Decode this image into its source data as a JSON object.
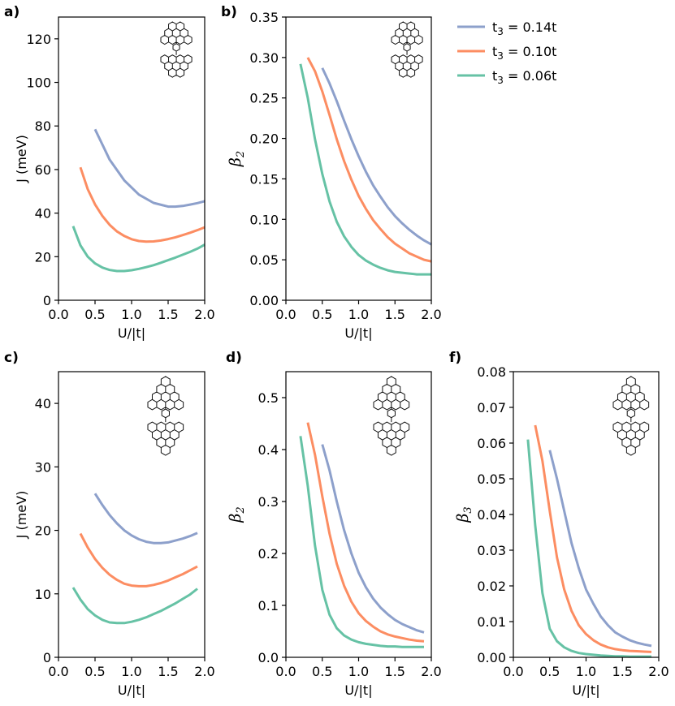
{
  "colors": {
    "t3_014": "#8DA0CB",
    "t3_010": "#FC8D62",
    "t3_006": "#66C2A5"
  },
  "legend": {
    "entries": [
      {
        "base": "t",
        "sub": "3",
        "rest": " = 0.14t",
        "color_key": "t3_014"
      },
      {
        "base": "t",
        "sub": "3",
        "rest": " = 0.10t",
        "color_key": "t3_010"
      },
      {
        "base": "t",
        "sub": "3",
        "rest": " = 0.06t",
        "color_key": "t3_006"
      }
    ]
  },
  "chart_data": [
    {
      "panel": "a)",
      "type": "line",
      "icon": "small-molecule",
      "xlabel": "U/|t|",
      "ylabel": "J (meV)",
      "ylabel_style": "plain",
      "xlim": [
        0.0,
        2.0
      ],
      "ylim": [
        0,
        130
      ],
      "xticks": [
        0.0,
        0.5,
        1.0,
        1.5,
        2.0
      ],
      "xtick_labels": [
        "0.0",
        "0.5",
        "1.0",
        "1.5",
        "2.0"
      ],
      "yticks": [
        0,
        20,
        40,
        60,
        80,
        100,
        120
      ],
      "ytick_labels": [
        "0",
        "20",
        "40",
        "60",
        "80",
        "100",
        "120"
      ],
      "series": [
        {
          "color_key": "t3_014",
          "x": [
            0.5,
            0.7,
            0.9,
            1.1,
            1.3,
            1.5,
            1.6,
            1.7,
            1.8,
            1.9,
            2.0
          ],
          "y": [
            78.5,
            64.5,
            55.0,
            48.5,
            44.7,
            43.0,
            43.0,
            43.3,
            43.9,
            44.6,
            45.5
          ]
        },
        {
          "color_key": "t3_010",
          "x": [
            0.3,
            0.4,
            0.5,
            0.6,
            0.7,
            0.8,
            0.9,
            1.0,
            1.1,
            1.2,
            1.3,
            1.4,
            1.5,
            1.6,
            1.7,
            1.8,
            1.9,
            2.0
          ],
          "y": [
            61,
            51,
            44,
            38.7,
            34.6,
            31.6,
            29.5,
            28.0,
            27.2,
            26.9,
            27.0,
            27.4,
            28.1,
            28.9,
            29.9,
            31.0,
            32.2,
            33.5
          ]
        },
        {
          "color_key": "t3_006",
          "x": [
            0.2,
            0.3,
            0.4,
            0.5,
            0.6,
            0.7,
            0.8,
            0.9,
            1.0,
            1.1,
            1.2,
            1.3,
            1.4,
            1.5,
            1.6,
            1.7,
            1.8,
            1.9,
            2.0
          ],
          "y": [
            34,
            25.2,
            20.0,
            16.9,
            15.0,
            13.9,
            13.4,
            13.4,
            13.8,
            14.4,
            15.2,
            16.1,
            17.2,
            18.4,
            19.6,
            20.9,
            22.2,
            23.7,
            25.5
          ]
        }
      ]
    },
    {
      "panel": "b)",
      "type": "line",
      "icon": "small-molecule",
      "xlabel": "U/|t|",
      "ylabel": "β",
      "ylabel_sub": "2",
      "ylabel_style": "greek",
      "xlim": [
        0.0,
        2.0
      ],
      "ylim": [
        0,
        0.35
      ],
      "xticks": [
        0.0,
        0.5,
        1.0,
        1.5,
        2.0
      ],
      "xtick_labels": [
        "0.0",
        "0.5",
        "1.0",
        "1.5",
        "2.0"
      ],
      "yticks": [
        0,
        0.05,
        0.1,
        0.15,
        0.2,
        0.25,
        0.3,
        0.35
      ],
      "ytick_labels": [
        "0.00",
        "0.05",
        "0.10",
        "0.15",
        "0.20",
        "0.25",
        "0.30",
        "0.35"
      ],
      "series": [
        {
          "color_key": "t3_014",
          "x": [
            0.5,
            0.6,
            0.7,
            0.8,
            0.9,
            1.0,
            1.1,
            1.2,
            1.3,
            1.4,
            1.5,
            1.6,
            1.7,
            1.8,
            1.9,
            2.0
          ],
          "y": [
            0.287,
            0.268,
            0.246,
            0.222,
            0.199,
            0.178,
            0.159,
            0.142,
            0.128,
            0.115,
            0.104,
            0.095,
            0.087,
            0.08,
            0.074,
            0.069
          ]
        },
        {
          "color_key": "t3_010",
          "x": [
            0.3,
            0.4,
            0.5,
            0.6,
            0.7,
            0.8,
            0.9,
            1.0,
            1.1,
            1.2,
            1.3,
            1.4,
            1.5,
            1.6,
            1.7,
            1.8,
            1.9,
            2.0
          ],
          "y": [
            0.3,
            0.283,
            0.258,
            0.229,
            0.199,
            0.172,
            0.149,
            0.129,
            0.113,
            0.099,
            0.088,
            0.078,
            0.07,
            0.064,
            0.058,
            0.054,
            0.05,
            0.048
          ]
        },
        {
          "color_key": "t3_006",
          "x": [
            0.2,
            0.3,
            0.4,
            0.5,
            0.6,
            0.7,
            0.8,
            0.9,
            1.0,
            1.1,
            1.2,
            1.3,
            1.4,
            1.5,
            1.6,
            1.7,
            1.8,
            1.9,
            2.0
          ],
          "y": [
            0.292,
            0.25,
            0.199,
            0.156,
            0.122,
            0.097,
            0.079,
            0.066,
            0.056,
            0.049,
            0.044,
            0.04,
            0.037,
            0.035,
            0.034,
            0.033,
            0.032,
            0.032,
            0.032
          ]
        }
      ]
    },
    {
      "panel": "c)",
      "type": "line",
      "icon": "large-molecule",
      "xlabel": "U/|t|",
      "ylabel": "J (meV)",
      "ylabel_style": "plain",
      "xlim": [
        0.0,
        2.0
      ],
      "ylim": [
        0,
        45
      ],
      "xticks": [
        0.0,
        0.5,
        1.0,
        1.5,
        2.0
      ],
      "xtick_labels": [
        "0.0",
        "0.5",
        "1.0",
        "1.5",
        "2.0"
      ],
      "yticks": [
        0,
        10,
        20,
        30,
        40
      ],
      "ytick_labels": [
        "0",
        "10",
        "20",
        "30",
        "40"
      ],
      "series": [
        {
          "color_key": "t3_014",
          "x": [
            0.5,
            0.6,
            0.7,
            0.8,
            0.9,
            1.0,
            1.1,
            1.2,
            1.3,
            1.4,
            1.5,
            1.6,
            1.7,
            1.8,
            1.9
          ],
          "y": [
            25.8,
            24.0,
            22.4,
            21.1,
            20.0,
            19.2,
            18.6,
            18.2,
            18.0,
            18.0,
            18.1,
            18.4,
            18.7,
            19.1,
            19.6
          ]
        },
        {
          "color_key": "t3_010",
          "x": [
            0.3,
            0.4,
            0.5,
            0.6,
            0.7,
            0.8,
            0.9,
            1.0,
            1.1,
            1.2,
            1.3,
            1.4,
            1.5,
            1.6,
            1.7,
            1.8,
            1.9
          ],
          "y": [
            19.5,
            17.3,
            15.5,
            14.1,
            13.0,
            12.2,
            11.6,
            11.3,
            11.2,
            11.2,
            11.4,
            11.7,
            12.1,
            12.6,
            13.1,
            13.7,
            14.3
          ]
        },
        {
          "color_key": "t3_006",
          "x": [
            0.2,
            0.3,
            0.4,
            0.5,
            0.6,
            0.7,
            0.8,
            0.9,
            1.0,
            1.1,
            1.2,
            1.3,
            1.4,
            1.5,
            1.6,
            1.7,
            1.8,
            1.9
          ],
          "y": [
            11.0,
            9.1,
            7.6,
            6.6,
            5.9,
            5.5,
            5.4,
            5.4,
            5.6,
            5.9,
            6.3,
            6.8,
            7.3,
            7.9,
            8.5,
            9.2,
            9.9,
            10.8
          ]
        }
      ]
    },
    {
      "panel": "d)",
      "type": "line",
      "icon": "large-molecule",
      "xlabel": "U/|t|",
      "ylabel": "β",
      "ylabel_sub": "2",
      "ylabel_style": "greek",
      "xlim": [
        0.0,
        2.0
      ],
      "ylim": [
        0,
        0.55
      ],
      "xticks": [
        0.0,
        0.5,
        1.0,
        1.5,
        2.0
      ],
      "xtick_labels": [
        "0.0",
        "0.5",
        "1.0",
        "1.5",
        "2.0"
      ],
      "yticks": [
        0,
        0.1,
        0.2,
        0.3,
        0.4,
        0.5
      ],
      "ytick_labels": [
        "0.0",
        "0.1",
        "0.2",
        "0.3",
        "0.4",
        "0.5"
      ],
      "series": [
        {
          "color_key": "t3_014",
          "x": [
            0.5,
            0.6,
            0.7,
            0.8,
            0.9,
            1.0,
            1.1,
            1.2,
            1.3,
            1.4,
            1.5,
            1.6,
            1.7,
            1.8,
            1.9
          ],
          "y": [
            0.41,
            0.36,
            0.3,
            0.245,
            0.2,
            0.163,
            0.135,
            0.113,
            0.096,
            0.083,
            0.072,
            0.064,
            0.058,
            0.052,
            0.048
          ]
        },
        {
          "color_key": "t3_010",
          "x": [
            0.3,
            0.4,
            0.5,
            0.6,
            0.7,
            0.8,
            0.9,
            1.0,
            1.1,
            1.2,
            1.3,
            1.4,
            1.5,
            1.6,
            1.7,
            1.8,
            1.9
          ],
          "y": [
            0.452,
            0.39,
            0.31,
            0.238,
            0.18,
            0.138,
            0.107,
            0.085,
            0.07,
            0.059,
            0.05,
            0.044,
            0.04,
            0.037,
            0.034,
            0.032,
            0.031
          ]
        },
        {
          "color_key": "t3_006",
          "x": [
            0.2,
            0.3,
            0.4,
            0.5,
            0.6,
            0.7,
            0.8,
            0.9,
            1.0,
            1.1,
            1.2,
            1.3,
            1.4,
            1.5,
            1.6,
            1.7,
            1.8,
            1.9
          ],
          "y": [
            0.426,
            0.33,
            0.215,
            0.13,
            0.082,
            0.056,
            0.042,
            0.034,
            0.029,
            0.026,
            0.024,
            0.022,
            0.021,
            0.021,
            0.02,
            0.02,
            0.02,
            0.02
          ]
        }
      ]
    },
    {
      "panel": "f)",
      "type": "line",
      "icon": "large-molecule",
      "xlabel": "U/|t|",
      "ylabel": "β",
      "ylabel_sub": "3",
      "ylabel_style": "greek",
      "xlim": [
        0.0,
        2.0
      ],
      "ylim": [
        0,
        0.08
      ],
      "xticks": [
        0.0,
        0.5,
        1.0,
        1.5,
        2.0
      ],
      "xtick_labels": [
        "0.0",
        "0.5",
        "1.0",
        "1.5",
        "2.0"
      ],
      "yticks": [
        0,
        0.01,
        0.02,
        0.03,
        0.04,
        0.05,
        0.06,
        0.07,
        0.08
      ],
      "ytick_labels": [
        "0.00",
        "0.01",
        "0.02",
        "0.03",
        "0.04",
        "0.05",
        "0.06",
        "0.07",
        "0.08"
      ],
      "series": [
        {
          "color_key": "t3_014",
          "x": [
            0.5,
            0.6,
            0.7,
            0.8,
            0.9,
            1.0,
            1.1,
            1.2,
            1.3,
            1.4,
            1.5,
            1.6,
            1.7,
            1.8,
            1.9
          ],
          "y": [
            0.058,
            0.05,
            0.041,
            0.032,
            0.025,
            0.019,
            0.015,
            0.0115,
            0.009,
            0.007,
            0.0058,
            0.0048,
            0.0041,
            0.0036,
            0.0032
          ]
        },
        {
          "color_key": "t3_010",
          "x": [
            0.3,
            0.4,
            0.5,
            0.6,
            0.7,
            0.8,
            0.9,
            1.0,
            1.1,
            1.2,
            1.3,
            1.4,
            1.5,
            1.6,
            1.7,
            1.8,
            1.9
          ],
          "y": [
            0.065,
            0.055,
            0.041,
            0.028,
            0.019,
            0.013,
            0.009,
            0.0065,
            0.0048,
            0.0036,
            0.0028,
            0.0023,
            0.002,
            0.0018,
            0.0017,
            0.0016,
            0.0015
          ]
        },
        {
          "color_key": "t3_006",
          "x": [
            0.2,
            0.3,
            0.4,
            0.5,
            0.6,
            0.7,
            0.8,
            0.9,
            1.0,
            1.1,
            1.2,
            1.3,
            1.4,
            1.5,
            1.6,
            1.7,
            1.8,
            1.9
          ],
          "y": [
            0.061,
            0.037,
            0.018,
            0.008,
            0.0045,
            0.0028,
            0.0018,
            0.0012,
            0.0009,
            0.0007,
            0.0005,
            0.0004,
            0.0003,
            0.0003,
            0.0002,
            0.0002,
            0.0002,
            0.0002
          ]
        }
      ]
    }
  ]
}
